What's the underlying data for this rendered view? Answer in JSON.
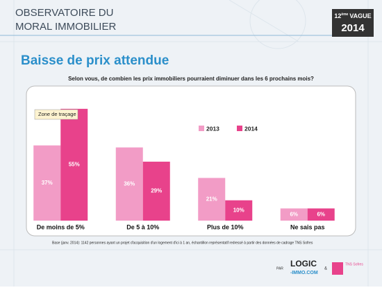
{
  "header": {
    "title_line1": "OBSERVATOIRE DU",
    "title_line2": "MORAL IMMOBILIER",
    "badge_number": "12",
    "badge_suffix": "ème",
    "badge_word": "VAGUE",
    "badge_year": "2014"
  },
  "chart_data": {
    "type": "bar",
    "title": "Baisse de prix attendue",
    "subtitle": "Selon vous, de combien les prix immobiliers pourraient diminuer dans les 6 prochains mois?",
    "annotation": "Zone de traçage",
    "categories": [
      "De moins de 5%",
      "De 5 à 10%",
      "Plus de 10%",
      "Ne sais pas"
    ],
    "series": [
      {
        "name": "2013",
        "color": "#f29cc6",
        "values": [
          37,
          36,
          21,
          6
        ],
        "value_labels": [
          "37%",
          "36%",
          "21%",
          "6%"
        ]
      },
      {
        "name": "2014",
        "color": "#e8428b",
        "values": [
          55,
          29,
          10,
          6
        ],
        "value_labels": [
          "55%",
          "29%",
          "10%",
          "6%"
        ]
      }
    ]
  },
  "footer": {
    "note": "Base (janv. 2014): 1142 personnes ayant un projet d'acquisition d'un logement d'ici à 1 an, échantillon représentatif redressé à partir des données de cadrage TNS Sofres",
    "by": "PAR",
    "logo1_top": "LOGIC",
    "logo1_bottom": "-IMMO.COM",
    "and": "&",
    "logo2": "TNS Sofres"
  }
}
